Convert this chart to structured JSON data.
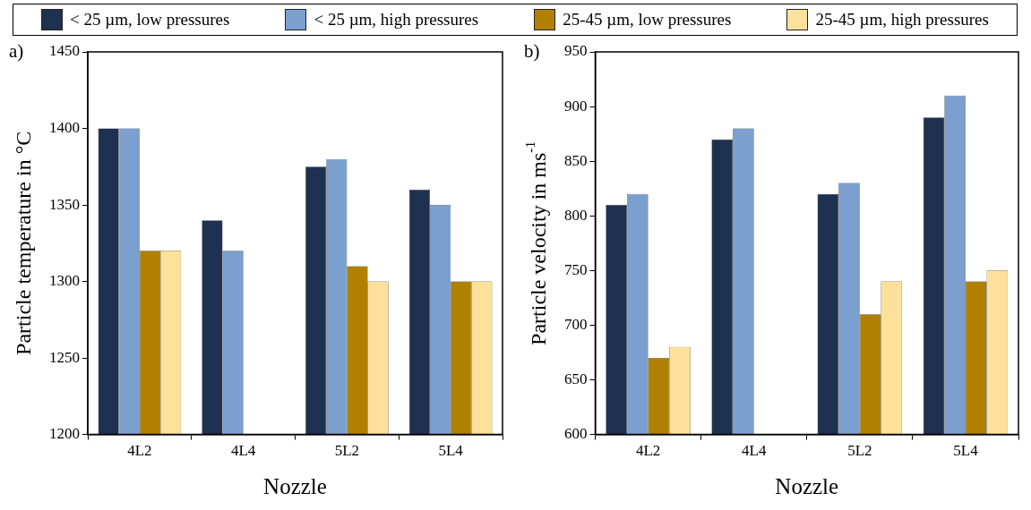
{
  "chart_data": [
    {
      "type": "bar",
      "title": "a)",
      "xlabel": "Nozzle",
      "ylabel": "Particle temperature in °C",
      "categories": [
        "4L2",
        "4L4",
        "5L2",
        "5L4"
      ],
      "series": [
        {
          "name": "< 25 µm, low pressures",
          "color": "#1f3150",
          "values": [
            1400,
            1340,
            1375,
            1360
          ]
        },
        {
          "name": "< 25 µm, high pressures",
          "color": "#7b9fce",
          "values": [
            1400,
            1320,
            1380,
            1350
          ]
        },
        {
          "name": "25-45 µm, low pressures",
          "color": "#b08000",
          "values": [
            1320,
            null,
            1310,
            1300
          ]
        },
        {
          "name": "25-45 µm, high pressures",
          "color": "#fde19a",
          "values": [
            1320,
            null,
            1300,
            1300
          ]
        }
      ],
      "ylim": [
        1200,
        1450
      ],
      "yticks": [
        1200,
        1250,
        1300,
        1350,
        1400,
        1450
      ],
      "grid": false,
      "legend": "top"
    },
    {
      "type": "bar",
      "title": "b)",
      "xlabel": "Nozzle",
      "ylabel": "Particle velocity in ms$^{-1}$",
      "categories": [
        "4L2",
        "4L4",
        "5L2",
        "5L4"
      ],
      "series": [
        {
          "color": "#1f3150",
          "values": [
            810,
            870,
            820,
            890
          ]
        },
        {
          "color": "#7b9fce",
          "values": [
            820,
            880,
            830,
            910
          ]
        },
        {
          "color": "#b08000",
          "values": [
            670,
            null,
            710,
            740
          ]
        },
        {
          "color": "#fde19a",
          "values": [
            680,
            null,
            740,
            750
          ]
        }
      ],
      "ylim": [
        600,
        950
      ],
      "yticks": [
        600,
        650,
        700,
        750,
        800,
        850,
        900,
        950
      ],
      "grid": false
    }
  ]
}
